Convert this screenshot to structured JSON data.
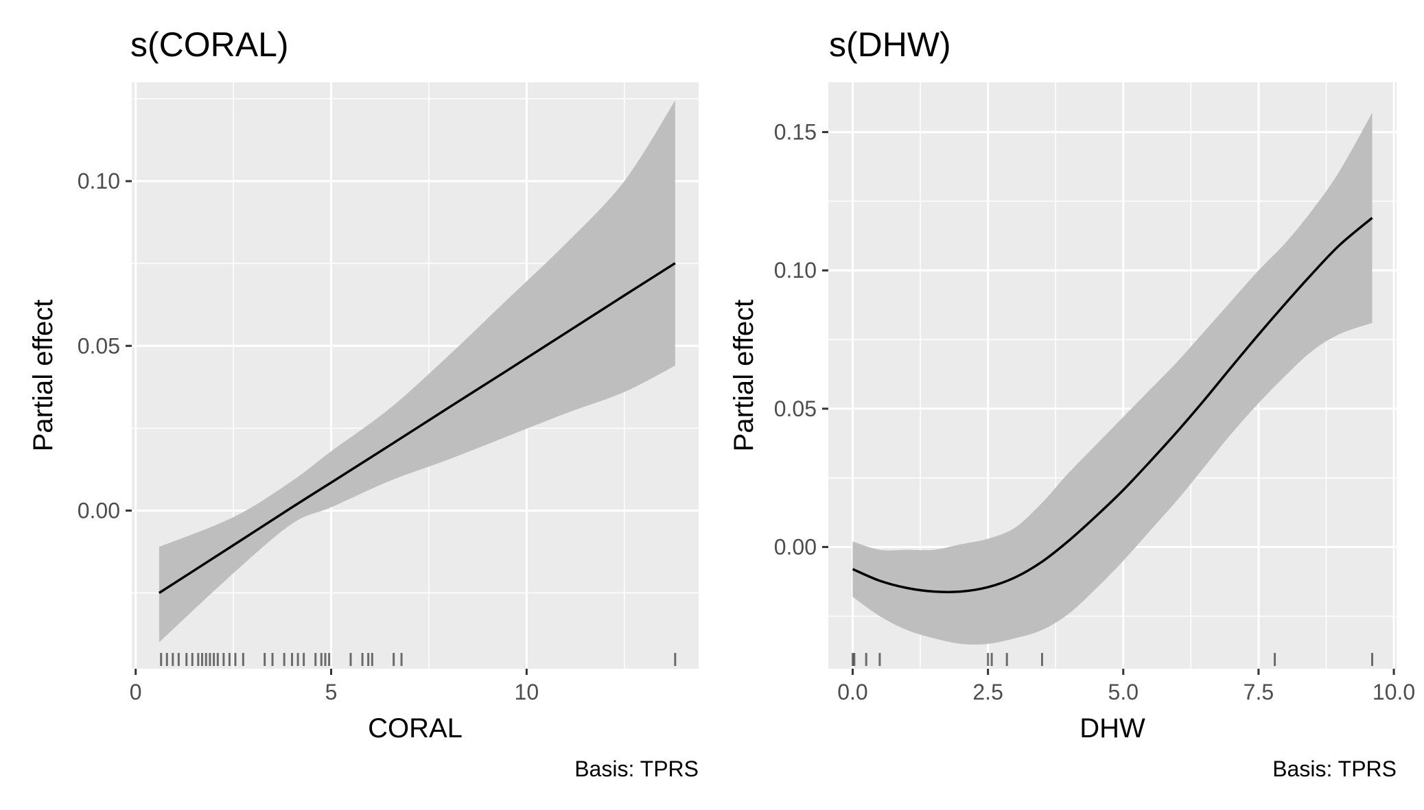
{
  "chart_data": [
    {
      "type": "line",
      "title": "s(CORAL)",
      "xlabel": "CORAL",
      "ylabel": "Partial effect",
      "caption": "Basis: TPRS",
      "xlim": [
        -0.1,
        14.4
      ],
      "ylim": [
        -0.048,
        0.13
      ],
      "x_ticks": [
        0,
        5,
        10
      ],
      "x_tick_labels": [
        "0",
        "5",
        "10"
      ],
      "y_ticks": [
        0.0,
        0.05,
        0.1
      ],
      "y_tick_labels": [
        "0.00",
        "0.05",
        "0.10"
      ],
      "grid": true,
      "series": [
        {
          "x": [
            0.6,
            2.5,
            4.0,
            5.0,
            6.5,
            8.0,
            9.5,
            11.0,
            12.5,
            13.8
          ],
          "y": [
            -0.025,
            -0.0105,
            0.001,
            0.0085,
            0.0198,
            0.0312,
            0.0425,
            0.0539,
            0.0653,
            0.0751
          ],
          "lower": [
            -0.04,
            -0.019,
            -0.004,
            0.001,
            0.009,
            0.0155,
            0.0225,
            0.0295,
            0.036,
            0.044
          ],
          "upper": [
            -0.011,
            -0.002,
            0.009,
            0.018,
            0.031,
            0.047,
            0.064,
            0.081,
            0.1,
            0.1245
          ]
        }
      ],
      "rug": [
        0.65,
        0.8,
        0.95,
        1.1,
        1.3,
        1.45,
        1.6,
        1.7,
        1.8,
        1.9,
        2.0,
        2.1,
        2.25,
        2.4,
        2.55,
        2.75,
        3.3,
        3.5,
        3.8,
        4.0,
        4.15,
        4.3,
        4.6,
        4.75,
        4.85,
        4.95,
        5.5,
        5.8,
        5.95,
        6.05,
        6.6,
        6.8,
        13.8
      ]
    },
    {
      "type": "line",
      "title": "s(DHW)",
      "xlabel": "DHW",
      "ylabel": "Partial effect",
      "caption": "Basis: TPRS",
      "xlim": [
        -0.45,
        10.05
      ],
      "ylim": [
        -0.044,
        0.168
      ],
      "x_ticks": [
        0.0,
        2.5,
        5.0,
        7.5,
        10.0
      ],
      "x_tick_labels": [
        "0.0",
        "2.5",
        "5.0",
        "7.5",
        "10.0"
      ],
      "y_ticks": [
        0.0,
        0.05,
        0.1,
        0.15
      ],
      "y_tick_labels": [
        "0.00",
        "0.05",
        "0.10",
        "0.15"
      ],
      "grid": true,
      "series": [
        {
          "x": [
            0.0,
            0.5,
            1.0,
            1.5,
            2.0,
            2.5,
            3.0,
            3.5,
            4.0,
            4.5,
            5.0,
            5.5,
            6.0,
            6.5,
            7.0,
            7.5,
            8.0,
            8.5,
            9.0,
            9.6
          ],
          "y": [
            -0.008,
            -0.0122,
            -0.0148,
            -0.0161,
            -0.0161,
            -0.0145,
            -0.011,
            -0.0053,
            0.0024,
            0.0112,
            0.0206,
            0.031,
            0.0418,
            0.0532,
            0.0651,
            0.0768,
            0.0881,
            0.099,
            0.1092,
            0.119
          ],
          "lower": [
            -0.018,
            -0.025,
            -0.03,
            -0.033,
            -0.035,
            -0.035,
            -0.033,
            -0.03,
            -0.024,
            -0.015,
            -0.005,
            0.006,
            0.017,
            0.029,
            0.041,
            0.052,
            0.062,
            0.071,
            0.077,
            0.081
          ],
          "upper": [
            0.002,
            -0.001,
            -0.001,
            -0.001,
            0.001,
            0.003,
            0.007,
            0.016,
            0.027,
            0.037,
            0.047,
            0.057,
            0.067,
            0.078,
            0.089,
            0.1,
            0.11,
            0.122,
            0.136,
            0.157
          ]
        }
      ],
      "rug": [
        0.0,
        0.03,
        0.25,
        0.5,
        2.5,
        2.57,
        2.85,
        3.5,
        7.8,
        9.6
      ]
    }
  ]
}
